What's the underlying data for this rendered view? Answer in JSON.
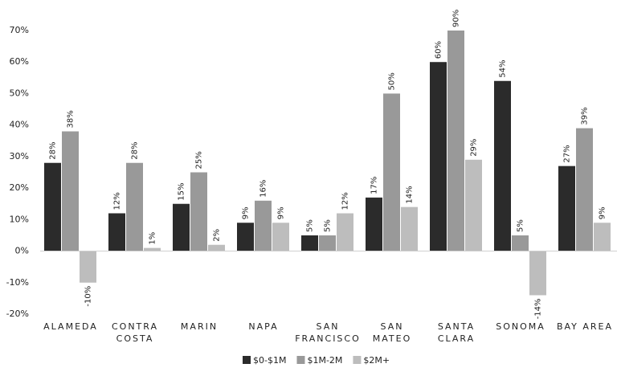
{
  "chart_data": {
    "type": "bar",
    "categories": [
      "ALAMEDA",
      "CONTRA\nCOSTA",
      "MARIN",
      "NAPA",
      "SAN\nFRANCISCO",
      "SAN\nMATEO",
      "SANTA\nCLARA",
      "SONOMA",
      "BAY AREA"
    ],
    "series": [
      {
        "name": "$0-$1M",
        "color": "#2b2b2b",
        "values": [
          28,
          12,
          15,
          9,
          5,
          17,
          60,
          54,
          27
        ],
        "value_labels": [
          "28%",
          "12%",
          "15%",
          "9%",
          "5%",
          "17%",
          "60%",
          "54%",
          "27%"
        ]
      },
      {
        "name": "$1M-2M",
        "color": "#999999",
        "values": [
          38,
          28,
          25,
          16,
          5,
          50,
          90,
          5,
          39
        ],
        "value_labels": [
          "38%",
          "28%",
          "25%",
          "16%",
          "5%",
          "50%",
          "90%",
          "5%",
          "39%"
        ]
      },
      {
        "name": "$2M+",
        "color": "#bdbdbd",
        "values": [
          -10,
          1,
          2,
          9,
          12,
          14,
          29,
          -14,
          9
        ],
        "value_labels": [
          "-10%",
          "1%",
          "2%",
          "9%",
          "12%",
          "14%",
          "29%",
          "-14%",
          "9%"
        ]
      }
    ],
    "ylim": [
      -20,
      70
    ],
    "yticks": [
      {
        "value": -20,
        "label": "-20%"
      },
      {
        "value": -10,
        "label": "-10%"
      },
      {
        "value": 0,
        "label": "0%"
      },
      {
        "value": 10,
        "label": "10%"
      },
      {
        "value": 20,
        "label": "20%"
      },
      {
        "value": 30,
        "label": "30%"
      },
      {
        "value": 40,
        "label": "40%"
      },
      {
        "value": 50,
        "label": "50%"
      },
      {
        "value": 60,
        "label": "60%"
      },
      {
        "value": 70,
        "label": "70%"
      }
    ],
    "grid": false,
    "legend": "bottom"
  }
}
